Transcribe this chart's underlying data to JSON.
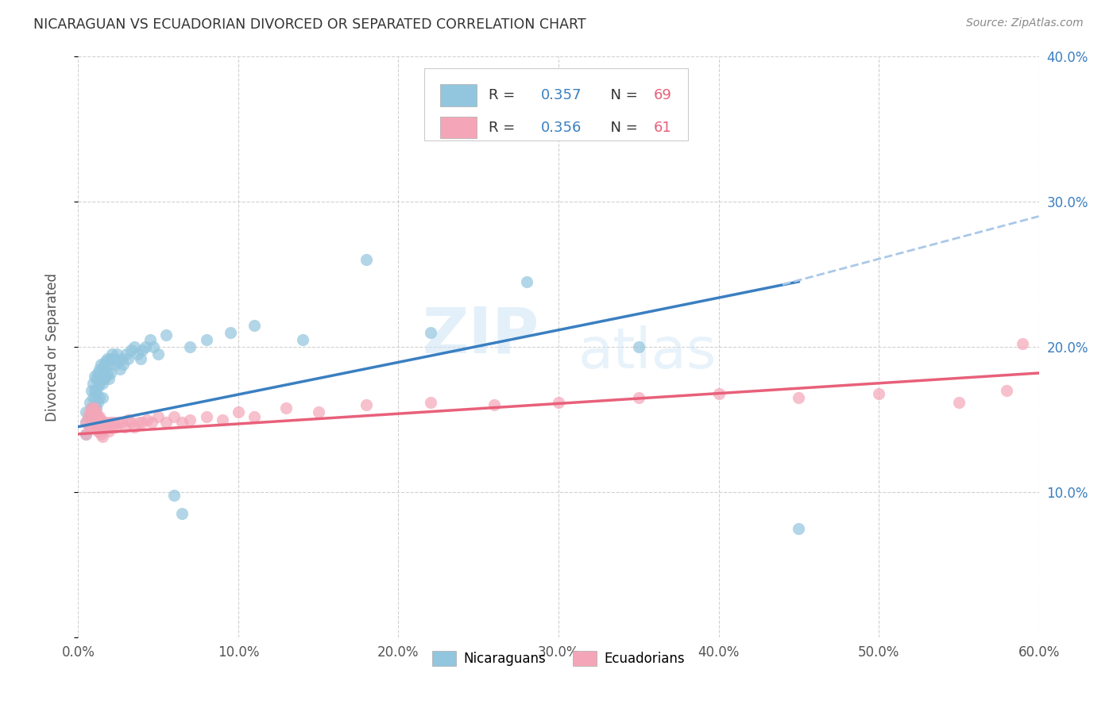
{
  "title": "NICARAGUAN VS ECUADORIAN DIVORCED OR SEPARATED CORRELATION CHART",
  "source": "Source: ZipAtlas.com",
  "ylabel": "Divorced or Separated",
  "legend_nicaraguans": "Nicaraguans",
  "legend_ecuadorians": "Ecuadorians",
  "r_nicaraguan": 0.357,
  "n_nicaraguan": 69,
  "r_ecuadorian": 0.356,
  "n_ecuadorian": 61,
  "xmin": 0.0,
  "xmax": 0.6,
  "ymin": 0.0,
  "ymax": 0.4,
  "xticks": [
    0.0,
    0.1,
    0.2,
    0.3,
    0.4,
    0.5,
    0.6
  ],
  "yticks_right": [
    0.1,
    0.2,
    0.3,
    0.4
  ],
  "blue_color": "#92c5de",
  "pink_color": "#f4a6b8",
  "blue_line_color": "#3a7fc1",
  "pink_line_color": "#e8607a",
  "dashed_line_color": "#aac8e8",
  "watermark_zip": "ZIP",
  "watermark_atlas": "atlas",
  "nicaraguan_scatter_x": [
    0.005,
    0.005,
    0.005,
    0.007,
    0.007,
    0.008,
    0.008,
    0.009,
    0.009,
    0.009,
    0.01,
    0.01,
    0.01,
    0.011,
    0.011,
    0.011,
    0.012,
    0.012,
    0.012,
    0.013,
    0.013,
    0.013,
    0.014,
    0.014,
    0.015,
    0.015,
    0.015,
    0.016,
    0.016,
    0.017,
    0.017,
    0.018,
    0.018,
    0.019,
    0.019,
    0.02,
    0.02,
    0.021,
    0.022,
    0.023,
    0.024,
    0.025,
    0.026,
    0.027,
    0.028,
    0.03,
    0.031,
    0.033,
    0.035,
    0.037,
    0.039,
    0.04,
    0.042,
    0.045,
    0.047,
    0.05,
    0.055,
    0.06,
    0.065,
    0.07,
    0.08,
    0.095,
    0.11,
    0.14,
    0.18,
    0.22,
    0.28,
    0.35,
    0.45
  ],
  "nicaraguan_scatter_y": [
    0.155,
    0.148,
    0.14,
    0.162,
    0.152,
    0.17,
    0.158,
    0.175,
    0.165,
    0.155,
    0.18,
    0.17,
    0.16,
    0.178,
    0.168,
    0.158,
    0.182,
    0.172,
    0.162,
    0.185,
    0.175,
    0.165,
    0.188,
    0.178,
    0.185,
    0.175,
    0.165,
    0.188,
    0.178,
    0.19,
    0.18,
    0.192,
    0.182,
    0.188,
    0.178,
    0.192,
    0.182,
    0.195,
    0.192,
    0.188,
    0.195,
    0.19,
    0.185,
    0.192,
    0.188,
    0.195,
    0.192,
    0.198,
    0.2,
    0.195,
    0.192,
    0.198,
    0.2,
    0.205,
    0.2,
    0.195,
    0.208,
    0.098,
    0.085,
    0.2,
    0.205,
    0.21,
    0.215,
    0.205,
    0.26,
    0.21,
    0.245,
    0.2,
    0.075
  ],
  "ecuadorian_scatter_x": [
    0.005,
    0.005,
    0.006,
    0.007,
    0.007,
    0.008,
    0.008,
    0.009,
    0.009,
    0.01,
    0.01,
    0.011,
    0.011,
    0.012,
    0.012,
    0.013,
    0.013,
    0.014,
    0.014,
    0.015,
    0.015,
    0.016,
    0.017,
    0.018,
    0.019,
    0.02,
    0.021,
    0.022,
    0.023,
    0.025,
    0.027,
    0.029,
    0.031,
    0.033,
    0.035,
    0.038,
    0.04,
    0.043,
    0.046,
    0.05,
    0.055,
    0.06,
    0.065,
    0.07,
    0.08,
    0.09,
    0.1,
    0.11,
    0.13,
    0.15,
    0.18,
    0.22,
    0.26,
    0.3,
    0.35,
    0.4,
    0.45,
    0.5,
    0.55,
    0.58,
    0.59
  ],
  "ecuadorian_scatter_y": [
    0.148,
    0.14,
    0.152,
    0.155,
    0.145,
    0.158,
    0.148,
    0.155,
    0.145,
    0.158,
    0.148,
    0.155,
    0.145,
    0.152,
    0.142,
    0.152,
    0.142,
    0.15,
    0.14,
    0.148,
    0.138,
    0.145,
    0.148,
    0.145,
    0.142,
    0.148,
    0.145,
    0.148,
    0.145,
    0.148,
    0.148,
    0.145,
    0.15,
    0.148,
    0.145,
    0.148,
    0.148,
    0.15,
    0.148,
    0.152,
    0.148,
    0.152,
    0.148,
    0.15,
    0.152,
    0.15,
    0.155,
    0.152,
    0.158,
    0.155,
    0.16,
    0.162,
    0.16,
    0.162,
    0.165,
    0.168,
    0.165,
    0.168,
    0.162,
    0.17,
    0.202
  ],
  "blue_line_x": [
    0.0,
    0.45
  ],
  "blue_line_y": [
    0.145,
    0.245
  ],
  "dashed_line_x": [
    0.44,
    0.6
  ],
  "dashed_line_y": [
    0.243,
    0.29
  ],
  "pink_line_x": [
    0.0,
    0.6
  ],
  "pink_line_y": [
    0.14,
    0.182
  ]
}
